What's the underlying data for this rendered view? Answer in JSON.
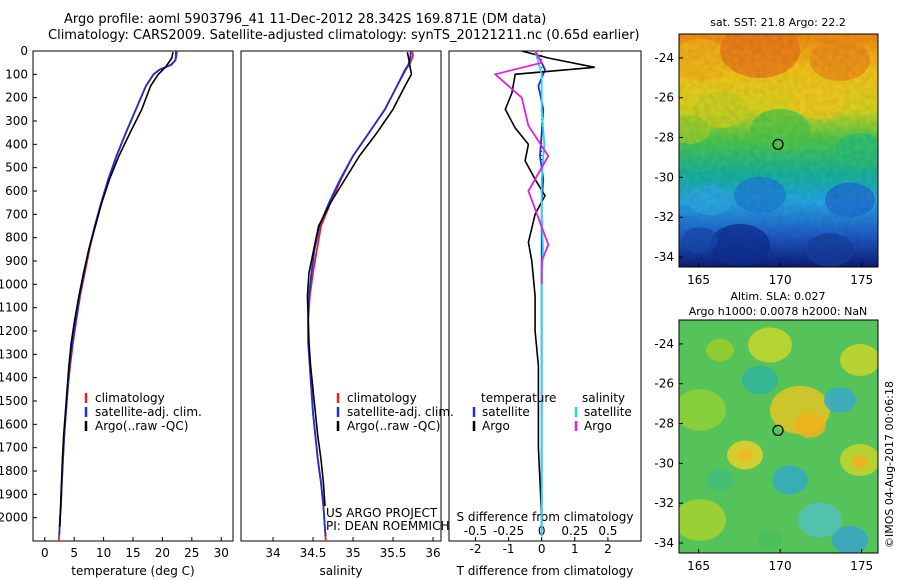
{
  "title": {
    "line1": "Argo profile: aoml 5903796_41 11-Dec-2012 28.342S 169.871E (DM data)",
    "line2": "Climatology: CARS2009. Satellite-adjusted climatology: synTS_20121211.nc (0.65d earlier)"
  },
  "footer": {
    "project": "US ARGO PROJECT",
    "pi": "PI: DEAN ROEMMICH"
  },
  "credit": "©IMOS 04-Aug-2017 00:06:18",
  "colors": {
    "climatology": "#e8202a",
    "satellite": "#1f2fd6",
    "argo": "#000000",
    "sat_salinity": "#22d8ee",
    "argo_salinity": "#e020e0"
  },
  "chart_data": [
    {
      "type": "line",
      "name": "temperature",
      "xlabel": "temperature (deg C)",
      "xlim": [
        -2,
        32
      ],
      "xticks": [
        0,
        5,
        10,
        15,
        20,
        25,
        30
      ],
      "ylim": [
        0,
        2100
      ],
      "yticks": [
        0,
        100,
        200,
        300,
        400,
        500,
        600,
        700,
        800,
        900,
        1000,
        1100,
        1200,
        1300,
        1400,
        1500,
        1600,
        1700,
        1800,
        1900,
        2000
      ],
      "legend": [
        "climatology",
        "satellite-adj. clim.",
        "Argo(..raw -QC)"
      ],
      "series": [
        {
          "name": "climatology",
          "color": "climatology",
          "x": [
            22.5,
            22.4,
            22.2,
            21.5,
            19.5,
            18.5,
            17.2,
            15.5,
            13.8,
            12.2,
            10.8,
            9.6,
            8.5,
            7.6,
            6.8,
            6.0,
            5.4,
            4.8,
            4.3,
            3.9,
            3.6,
            3.3,
            3.1,
            2.9,
            2.75,
            2.6,
            2.5,
            2.4
          ],
          "y": [
            0,
            20,
            40,
            60,
            80,
            100,
            150,
            250,
            350,
            450,
            550,
            650,
            750,
            850,
            950,
            1050,
            1150,
            1250,
            1350,
            1450,
            1550,
            1650,
            1750,
            1850,
            1950,
            2000,
            2050,
            2100
          ]
        },
        {
          "name": "satellite-adj. clim.",
          "color": "satellite",
          "x": [
            22.3,
            22.3,
            22.2,
            21.4,
            19.5,
            18.5,
            17.2,
            15.5,
            13.8,
            12.2,
            10.8,
            9.6,
            8.5,
            7.5,
            6.7,
            5.9,
            5.3,
            4.7,
            4.2,
            3.9,
            3.6,
            3.3,
            3.1,
            2.9,
            2.75,
            2.6,
            2.5,
            2.45
          ],
          "y": [
            0,
            20,
            40,
            60,
            80,
            100,
            150,
            250,
            350,
            450,
            550,
            650,
            750,
            850,
            950,
            1050,
            1150,
            1250,
            1350,
            1450,
            1550,
            1650,
            1750,
            1850,
            1950,
            2000,
            2050,
            2075
          ]
        },
        {
          "name": "Argo(..raw -QC)",
          "color": "argo",
          "x": [
            21.8,
            21.6,
            20.5,
            19.3,
            18.0,
            16.5,
            14.5,
            12.6,
            11.0,
            9.7,
            8.6,
            7.5,
            6.6,
            5.8,
            5.1,
            4.5,
            4.1,
            3.8,
            3.5,
            3.2,
            3.0,
            2.85,
            2.7,
            2.6,
            2.55
          ],
          "y": [
            5,
            30,
            70,
            100,
            150,
            250,
            350,
            450,
            550,
            650,
            750,
            850,
            950,
            1050,
            1150,
            1250,
            1350,
            1450,
            1550,
            1650,
            1750,
            1850,
            1950,
            2000,
            2040
          ]
        }
      ]
    },
    {
      "type": "line",
      "name": "salinity",
      "xlabel": "salinity",
      "xlim": [
        33.6,
        36.1
      ],
      "xticks": [
        34,
        34.5,
        35,
        35.5,
        36
      ],
      "ylim": [
        0,
        2100
      ],
      "legend": [
        "climatology",
        "satellite-adj. clim.",
        "Argo(..raw -QC)"
      ],
      "series": [
        {
          "name": "climatology",
          "color": "climatology",
          "x": [
            35.74,
            35.75,
            35.73,
            35.7,
            35.66,
            35.55,
            35.4,
            35.2,
            35.0,
            34.85,
            34.72,
            34.6,
            34.55,
            34.5,
            34.46,
            34.44,
            34.44,
            34.46,
            34.48,
            34.5,
            34.53,
            34.56,
            34.6,
            34.63,
            34.65,
            34.66
          ],
          "y": [
            0,
            20,
            40,
            60,
            80,
            150,
            250,
            350,
            450,
            550,
            650,
            750,
            850,
            950,
            1050,
            1150,
            1250,
            1350,
            1450,
            1550,
            1650,
            1750,
            1850,
            1950,
            2050,
            2100
          ]
        },
        {
          "name": "satellite-adj. clim.",
          "color": "satellite",
          "x": [
            35.72,
            35.72,
            35.71,
            35.69,
            35.65,
            35.55,
            35.4,
            35.2,
            35.0,
            34.84,
            34.7,
            34.58,
            34.52,
            34.48,
            34.45,
            34.44,
            34.44,
            34.46,
            34.48,
            34.5,
            34.53,
            34.56,
            34.6,
            34.63,
            34.65,
            34.66
          ],
          "y": [
            0,
            20,
            40,
            60,
            80,
            150,
            250,
            350,
            450,
            550,
            650,
            750,
            850,
            950,
            1050,
            1150,
            1250,
            1350,
            1450,
            1550,
            1650,
            1750,
            1850,
            1950,
            2050,
            2080
          ]
        },
        {
          "name": "Argo(..raw -QC)",
          "color": "argo",
          "x": [
            35.68,
            35.7,
            35.72,
            35.73,
            35.65,
            35.5,
            35.3,
            35.08,
            34.9,
            34.72,
            34.57,
            34.51,
            34.45,
            34.43,
            34.44,
            34.45,
            34.47,
            34.5,
            34.53,
            34.56,
            34.6,
            34.63,
            34.65
          ],
          "y": [
            5,
            40,
            80,
            100,
            150,
            250,
            350,
            450,
            550,
            650,
            750,
            850,
            950,
            1050,
            1150,
            1250,
            1350,
            1450,
            1550,
            1650,
            1750,
            1850,
            1950
          ]
        }
      ]
    },
    {
      "type": "line",
      "name": "difference",
      "xlabel_bottom": "T difference from climatology",
      "xlabel_top": "S difference from climatology",
      "xlim": [
        -2.8,
        3.0
      ],
      "xticks_T": [
        -2,
        -1,
        0,
        1,
        2
      ],
      "xticks_S": [
        -0.5,
        -0.25,
        0,
        0.25,
        0.5
      ],
      "xticks_S_labels": [
        "-0.5",
        "-0.25",
        "0",
        "0.25",
        "0.5"
      ],
      "legend": {
        "temperature_header": "temperature",
        "salinity_header": "salinity",
        "satellite": "satellite",
        "argo": "Argo"
      },
      "series": [
        {
          "name": "temperature satellite",
          "color": "satellite",
          "x": [
            -0.2,
            0.0,
            0.1,
            -0.1,
            0.05,
            0.0,
            -0.05,
            0.05,
            0.0,
            0.0,
            0.0,
            0.0,
            0.0,
            0.0,
            0.0,
            0.0,
            0.0,
            0.0,
            0.0,
            0.0
          ],
          "y": [
            0,
            50,
            80,
            150,
            250,
            350,
            450,
            550,
            650,
            750,
            850,
            950,
            1050,
            1200,
            1350,
            1500,
            1650,
            1800,
            1950,
            2080
          ]
        },
        {
          "name": "temperature Argo",
          "color": "argo",
          "x": [
            -0.6,
            0.2,
            1.6,
            -0.8,
            -0.9,
            -1.1,
            -0.8,
            -0.4,
            -0.5,
            -0.2,
            0.1,
            -0.2,
            -0.4,
            -0.3,
            -0.2,
            -0.2,
            -0.1,
            -0.1,
            -0.1,
            0.0
          ],
          "y": [
            0,
            30,
            70,
            100,
            180,
            250,
            330,
            400,
            470,
            550,
            620,
            700,
            820,
            900,
            1050,
            1200,
            1350,
            1500,
            1700,
            2000
          ]
        },
        {
          "name": "salinity satellite",
          "color": "sat_salinity",
          "x": [
            -0.05,
            0.0,
            0.0,
            0.02,
            0.0,
            0.0,
            0.01,
            0.0,
            0.0,
            0.0,
            0.0,
            0.0
          ],
          "y": [
            0,
            100,
            250,
            400,
            550,
            700,
            850,
            1000,
            1300,
            1600,
            1900,
            2080
          ]
        },
        {
          "name": "salinity Argo",
          "color": "argo_salinity",
          "x": [
            -0.05,
            0.0,
            -0.35,
            -0.15,
            -0.1,
            0.05,
            -0.1,
            0.05,
            0.0,
            0.0
          ],
          "y": [
            0,
            50,
            100,
            200,
            320,
            450,
            600,
            830,
            900,
            1000
          ]
        }
      ]
    },
    {
      "type": "heatmap",
      "name": "sst_map",
      "title": "sat. SST: 21.8  Argo: 22.2",
      "xticks": [
        165,
        170,
        175
      ],
      "yticks": [
        -24,
        -26,
        -28,
        -30,
        -32,
        -34
      ],
      "xlim": [
        163.8,
        176.0
      ],
      "ylim": [
        -34.5,
        -22.8
      ],
      "float_position": [
        169.871,
        -28.342
      ]
    },
    {
      "type": "heatmap",
      "name": "sla_map",
      "title_line1": "Altim. SLA: 0.027",
      "title_line2": "Argo h1000: 0.0078 h2000: NaN",
      "xticks": [
        165,
        170,
        175
      ],
      "yticks": [
        -24,
        -26,
        -28,
        -30,
        -32,
        -34
      ],
      "xlim": [
        163.8,
        176.0
      ],
      "ylim": [
        -34.5,
        -22.8
      ],
      "float_position": [
        169.871,
        -28.342
      ]
    }
  ]
}
